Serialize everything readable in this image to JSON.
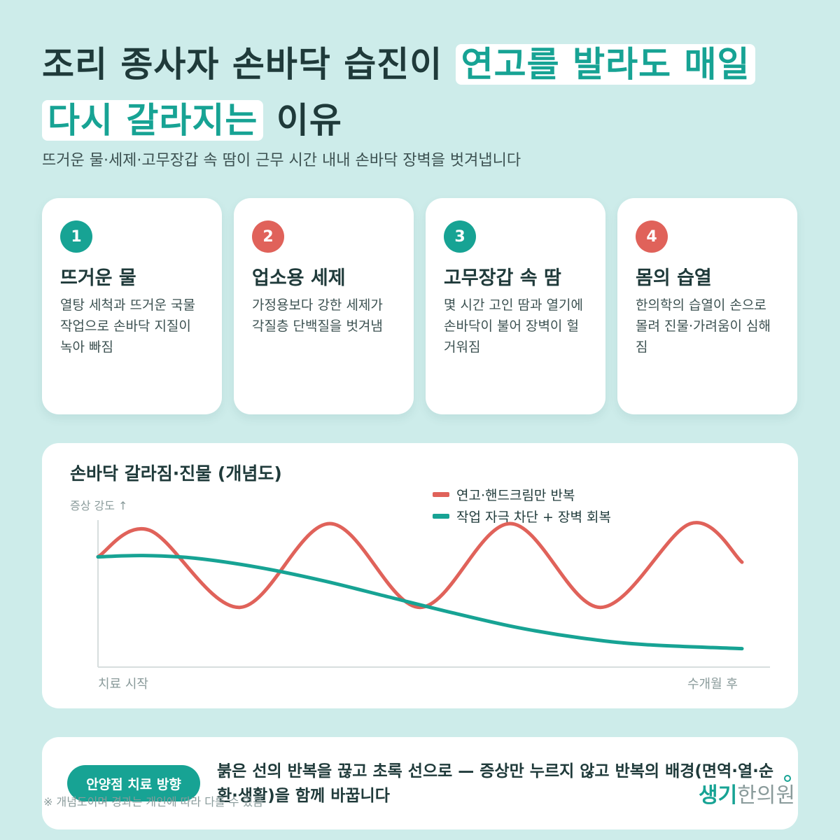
{
  "title": {
    "part1": "조리 종사자 손바닥 습진이",
    "highlight1": "연고를 발라도 매일",
    "highlight2": "다시 갈라지는",
    "part2": "이유"
  },
  "subtitle": "뜨거운 물·세제·고무장갑 속 땀이 근무 시간 내내 손바닥 장벽을 벗겨냅니다",
  "cards": [
    {
      "number": "1",
      "title": "뜨거운 물",
      "desc": "열탕 세척과 뜨거운 국물 작업으로 손바닥 지질이 녹아 빠짐",
      "color": "#17a394"
    },
    {
      "number": "2",
      "title": "업소용 세제",
      "desc": "가정용보다 강한 세제가 각질층 단백질을 벗겨냄",
      "color": "#e0625a"
    },
    {
      "number": "3",
      "title": "고무장갑 속 땀",
      "desc": "몇 시간 고인 땀과 열기에 손바닥이 불어 장벽이 헐거워짐",
      "color": "#17a394"
    },
    {
      "number": "4",
      "title": "몸의 습열",
      "desc": "한의학의 습열이 손으로 몰려 진물·가려움이 심해짐",
      "color": "#e0625a"
    }
  ],
  "chart": {
    "title": "손바닥 갈라짐·진물 (개념도)",
    "ylabel": "증상 강도 ↑",
    "xlabel_start": "치료 시작",
    "xlabel_end": "수개월 후"
  },
  "chart_data": {
    "type": "line",
    "title": "손바닥 갈라짐·진물 (개념도)",
    "ylabel": "증상 강도 ↑",
    "xlabel": "",
    "x_range": [
      "치료 시작",
      "수개월 후"
    ],
    "ylim": [
      0,
      1
    ],
    "grid": false,
    "legend_position": "top-right",
    "series": [
      {
        "name": "연고·핸드크림만 반복",
        "color": "#e0625a",
        "x": [
          0,
          0.08,
          0.22,
          0.36,
          0.5,
          0.64,
          0.78,
          0.92,
          1.0
        ],
        "y": [
          0.75,
          0.95,
          0.37,
          1.0,
          0.37,
          1.0,
          0.37,
          1.0,
          0.71
        ]
      },
      {
        "name": "작업 자극 차단 + 장벽 회복",
        "color": "#17a394",
        "x": [
          0,
          0.07,
          0.15,
          0.25,
          0.35,
          0.45,
          0.55,
          0.65,
          0.75,
          0.85,
          1.0
        ],
        "y": [
          0.75,
          0.76,
          0.74,
          0.67,
          0.57,
          0.45,
          0.33,
          0.22,
          0.14,
          0.09,
          0.06
        ]
      }
    ]
  },
  "bottom": {
    "pill": "안양점 치료 방향",
    "text": "붉은 선의 반복을 끊고 초록 선으로 — 증상만 누르지 않고 반복의 배경(면역·열·순환·생활)을 함께 바꿉니다"
  },
  "footnote": "※ 개념도이며 경과는 개인에 따라 다를 수 있음",
  "logo": {
    "main": "생기",
    "sub": "한의원"
  }
}
